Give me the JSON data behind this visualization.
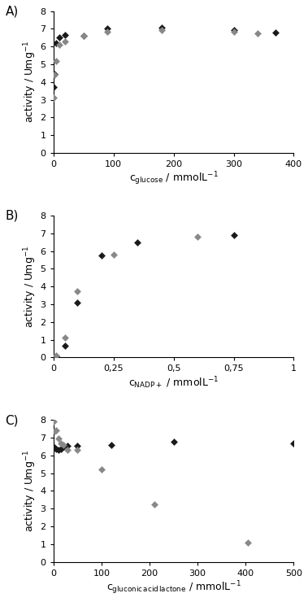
{
  "A": {
    "title": "A)",
    "xlabel": "c\\u2009glucose / mmolL\\u207b\\u00b9",
    "xlabel_plain": "c$_\\mathrm{glucose}$ / mmolL$^{-1}$",
    "ylabel": "activity / Umg$^{-1}$",
    "xlim": [
      0,
      400
    ],
    "ylim": [
      0,
      8
    ],
    "xticks": [
      0,
      100,
      200,
      300,
      400
    ],
    "yticks": [
      0,
      1,
      2,
      3,
      4,
      5,
      6,
      7,
      8
    ],
    "black_x": [
      1,
      2,
      5,
      10,
      20,
      50,
      90,
      180,
      300,
      370
    ],
    "black_y": [
      3.7,
      4.45,
      6.2,
      6.5,
      6.65,
      6.6,
      7.0,
      7.05,
      6.95,
      6.8
    ],
    "gray_x": [
      1,
      2,
      5,
      10,
      20,
      50,
      90,
      180,
      300,
      340
    ],
    "gray_y": [
      3.1,
      4.4,
      5.2,
      6.1,
      6.3,
      6.6,
      6.85,
      6.95,
      6.85,
      6.75
    ]
  },
  "B": {
    "title": "B)",
    "xlabel_plain": "c$_{\\mathrm{NADP+}}$ / mmolL$^{-1}$",
    "ylabel": "activity / Umg$^{-1}$",
    "xlim": [
      0,
      1
    ],
    "ylim": [
      0,
      8
    ],
    "xticks": [
      0,
      0.25,
      0.5,
      0.75,
      1.0
    ],
    "xtick_labels": [
      "0",
      "0,25",
      "0,5",
      "0,75",
      "1"
    ],
    "yticks": [
      0,
      1,
      2,
      3,
      4,
      5,
      6,
      7,
      8
    ],
    "black_x": [
      0.01,
      0.05,
      0.1,
      0.2,
      0.35,
      0.75
    ],
    "black_y": [
      0.05,
      0.65,
      3.1,
      5.75,
      6.5,
      6.9
    ],
    "gray_x": [
      0.01,
      0.05,
      0.1,
      0.25,
      0.6
    ],
    "gray_y": [
      0.1,
      1.1,
      3.75,
      5.8,
      6.8
    ]
  },
  "C": {
    "title": "C)",
    "xlabel_plain": "c$_{\\mathrm{gluconic\\,acid\\,lactone}}$ / mmolL$^{-1}$",
    "ylabel": "activity / Umg$^{-1}$",
    "xlim": [
      0,
      500
    ],
    "ylim": [
      0,
      8
    ],
    "xticks": [
      0,
      100,
      200,
      300,
      400,
      500
    ],
    "yticks": [
      0,
      1,
      2,
      3,
      4,
      5,
      6,
      7,
      8
    ],
    "black_x": [
      1,
      2,
      5,
      10,
      15,
      20,
      30,
      50,
      120,
      250,
      500
    ],
    "black_y": [
      6.45,
      6.45,
      6.35,
      6.3,
      6.35,
      6.5,
      6.55,
      6.55,
      6.6,
      6.75,
      6.7
    ],
    "gray_x": [
      1,
      2,
      5,
      10,
      15,
      20,
      30,
      50,
      100,
      210,
      405
    ],
    "gray_y": [
      7.9,
      7.35,
      7.4,
      6.95,
      6.7,
      6.6,
      6.3,
      6.3,
      5.2,
      3.25,
      1.1
    ]
  },
  "black_color": "#1a1a1a",
  "gray_color": "#888888",
  "marker": "D",
  "markersize": 4.5
}
